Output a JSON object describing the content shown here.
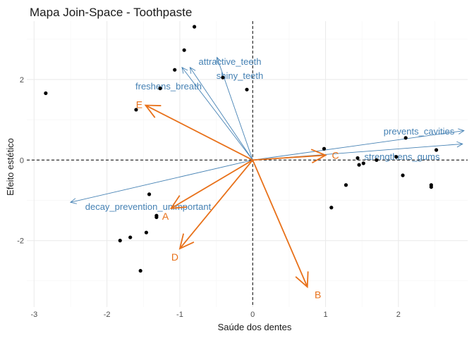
{
  "chart_data": {
    "type": "scatter",
    "title": "Mapa Join-Space - Toothpaste",
    "xlabel": "Saúde dos dentes",
    "ylabel": "Efeito estético",
    "xlim": [
      -3.1,
      2.95
    ],
    "ylim": [
      -3.65,
      3.45
    ],
    "x_ticks": [
      -3,
      -2,
      -1,
      0,
      1,
      2
    ],
    "y_ticks": [
      -2,
      0,
      2
    ],
    "grid": true,
    "reference_lines": {
      "x": 0,
      "y": 0,
      "style": "dashed"
    },
    "colors": {
      "attributes": "#4682b4",
      "groups": "#e8711a",
      "points": "#000000",
      "grid_major": "#ebebeb",
      "grid_minor": "#f5f5f5"
    },
    "points": [
      {
        "x": -2.84,
        "y": 1.66
      },
      {
        "x": -0.8,
        "y": 3.31
      },
      {
        "x": -0.94,
        "y": 2.73
      },
      {
        "x": -1.07,
        "y": 2.24
      },
      {
        "x": -0.41,
        "y": 2.05
      },
      {
        "x": -0.08,
        "y": 1.75
      },
      {
        "x": -1.27,
        "y": 1.78
      },
      {
        "x": -1.6,
        "y": 1.25
      },
      {
        "x": 0.98,
        "y": 0.28
      },
      {
        "x": 1.44,
        "y": 0.05
      },
      {
        "x": 1.52,
        "y": -0.08
      },
      {
        "x": 1.46,
        "y": -0.12
      },
      {
        "x": 1.7,
        "y": 0.0
      },
      {
        "x": 1.97,
        "y": 0.08
      },
      {
        "x": 2.1,
        "y": 0.55
      },
      {
        "x": 2.52,
        "y": 0.25
      },
      {
        "x": 2.06,
        "y": -0.38
      },
      {
        "x": 2.45,
        "y": -0.62
      },
      {
        "x": 2.45,
        "y": -0.67
      },
      {
        "x": 1.28,
        "y": -0.62
      },
      {
        "x": 1.08,
        "y": -1.18
      },
      {
        "x": -1.42,
        "y": -0.85
      },
      {
        "x": -1.32,
        "y": -1.38
      },
      {
        "x": -1.32,
        "y": -1.42
      },
      {
        "x": -1.46,
        "y": -1.8
      },
      {
        "x": -1.68,
        "y": -1.92
      },
      {
        "x": -1.82,
        "y": -2.0
      },
      {
        "x": -1.54,
        "y": -2.75
      }
    ],
    "attribute_vectors": [
      {
        "label": "attractive_teeth",
        "x": -0.49,
        "y": 2.55
      },
      {
        "label": "shiny_teeth",
        "x": -0.86,
        "y": 2.3
      },
      {
        "label": "freshens_breath",
        "x": -0.97,
        "y": 2.3
      },
      {
        "label": "prevents_cavities",
        "x": 2.9,
        "y": 0.73
      },
      {
        "label": "strengthens_gums",
        "x": 2.88,
        "y": 0.4
      },
      {
        "label": "decay_prevention_unimportant",
        "x": -2.5,
        "y": -1.05
      }
    ],
    "group_vectors": [
      {
        "label": "E",
        "x": -1.47,
        "y": 1.36
      },
      {
        "label": "C",
        "x": 1.0,
        "y": 0.12
      },
      {
        "label": "A",
        "x": -1.12,
        "y": -1.2
      },
      {
        "label": "D",
        "x": -1.0,
        "y": -2.2
      },
      {
        "label": "B",
        "x": 0.75,
        "y": -3.15
      }
    ]
  }
}
